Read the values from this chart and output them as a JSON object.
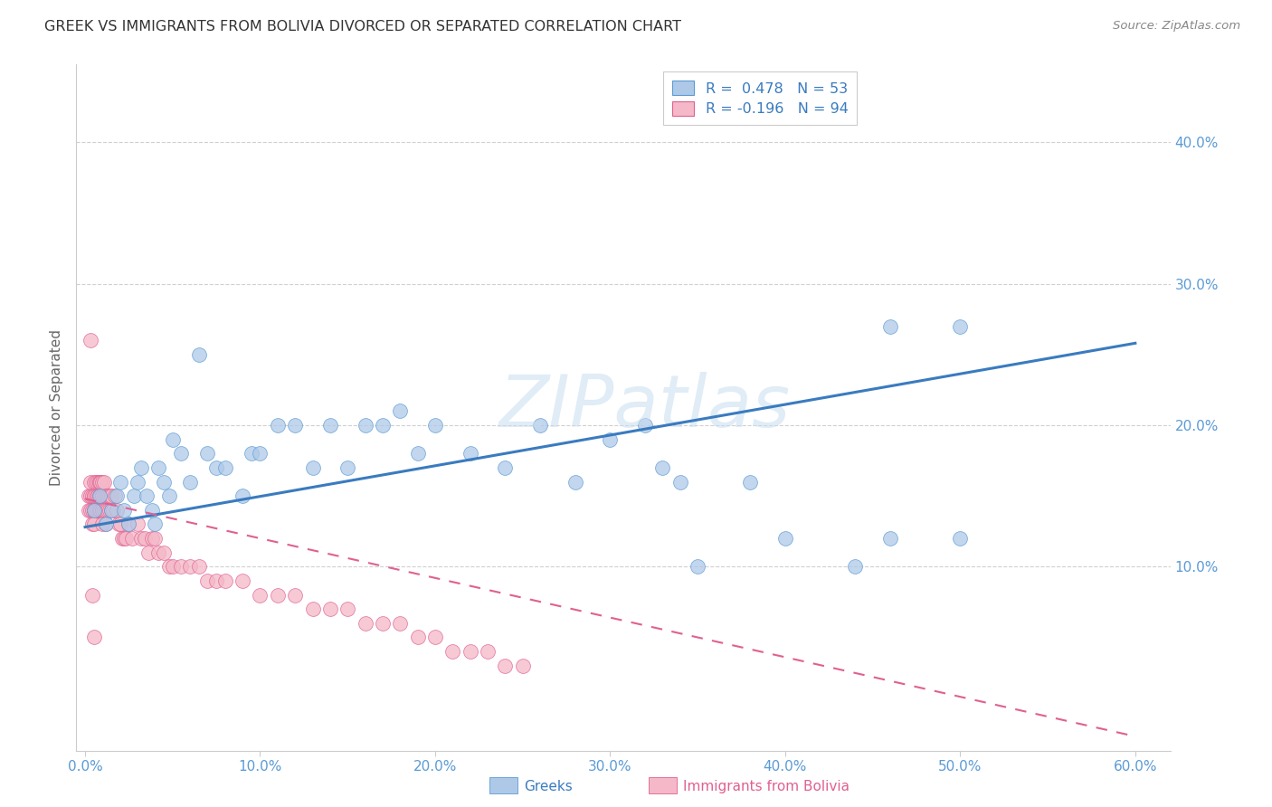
{
  "title": "GREEK VS IMMIGRANTS FROM BOLIVIA DIVORCED OR SEPARATED CORRELATION CHART",
  "source": "Source: ZipAtlas.com",
  "xlabel_ticks": [
    "0.0%",
    "10.0%",
    "20.0%",
    "30.0%",
    "40.0%",
    "50.0%",
    "60.0%"
  ],
  "xlabel_tick_vals": [
    0.0,
    0.1,
    0.2,
    0.3,
    0.4,
    0.5,
    0.6
  ],
  "ylabel": "Divorced or Separated",
  "ylabel_ticks": [
    "10.0%",
    "20.0%",
    "30.0%",
    "40.0%"
  ],
  "ylabel_tick_vals": [
    0.1,
    0.2,
    0.3,
    0.4
  ],
  "xlim": [
    -0.005,
    0.62
  ],
  "ylim": [
    -0.03,
    0.455
  ],
  "watermark_text": "ZIPatlas",
  "legend_blue_label": "R =  0.478   N = 53",
  "legend_pink_label": "R = -0.196   N = 94",
  "blue_color": "#aec9e8",
  "pink_color": "#f4b8c8",
  "blue_edge_color": "#5b9bd5",
  "pink_edge_color": "#e06090",
  "blue_line_color": "#3a7bbf",
  "pink_line_color": "#e06090",
  "blue_scatter_x": [
    0.005,
    0.008,
    0.012,
    0.015,
    0.018,
    0.02,
    0.022,
    0.025,
    0.028,
    0.03,
    0.032,
    0.035,
    0.038,
    0.04,
    0.042,
    0.045,
    0.048,
    0.05,
    0.055,
    0.06,
    0.065,
    0.07,
    0.075,
    0.08,
    0.09,
    0.095,
    0.1,
    0.11,
    0.12,
    0.13,
    0.14,
    0.15,
    0.16,
    0.17,
    0.18,
    0.19,
    0.2,
    0.22,
    0.24,
    0.26,
    0.28,
    0.3,
    0.32,
    0.33,
    0.34,
    0.35,
    0.38,
    0.4,
    0.44,
    0.46,
    0.46,
    0.5,
    0.5
  ],
  "blue_scatter_y": [
    0.14,
    0.15,
    0.13,
    0.14,
    0.15,
    0.16,
    0.14,
    0.13,
    0.15,
    0.16,
    0.17,
    0.15,
    0.14,
    0.13,
    0.17,
    0.16,
    0.15,
    0.19,
    0.18,
    0.16,
    0.25,
    0.18,
    0.17,
    0.17,
    0.15,
    0.18,
    0.18,
    0.2,
    0.2,
    0.17,
    0.2,
    0.17,
    0.2,
    0.2,
    0.21,
    0.18,
    0.2,
    0.18,
    0.17,
    0.2,
    0.16,
    0.19,
    0.2,
    0.17,
    0.16,
    0.1,
    0.16,
    0.12,
    0.1,
    0.27,
    0.12,
    0.12,
    0.27
  ],
  "pink_scatter_x": [
    0.002,
    0.002,
    0.003,
    0.003,
    0.003,
    0.004,
    0.004,
    0.004,
    0.005,
    0.005,
    0.005,
    0.005,
    0.005,
    0.005,
    0.005,
    0.006,
    0.006,
    0.006,
    0.007,
    0.007,
    0.007,
    0.007,
    0.008,
    0.008,
    0.008,
    0.008,
    0.009,
    0.009,
    0.009,
    0.009,
    0.01,
    0.01,
    0.01,
    0.01,
    0.01,
    0.01,
    0.011,
    0.011,
    0.011,
    0.012,
    0.012,
    0.012,
    0.013,
    0.013,
    0.014,
    0.014,
    0.015,
    0.015,
    0.016,
    0.017,
    0.018,
    0.019,
    0.02,
    0.021,
    0.022,
    0.023,
    0.025,
    0.027,
    0.03,
    0.032,
    0.034,
    0.036,
    0.038,
    0.04,
    0.042,
    0.045,
    0.048,
    0.05,
    0.055,
    0.06,
    0.065,
    0.07,
    0.075,
    0.08,
    0.09,
    0.1,
    0.11,
    0.12,
    0.13,
    0.14,
    0.15,
    0.16,
    0.17,
    0.18,
    0.19,
    0.2,
    0.21,
    0.22,
    0.23,
    0.24,
    0.25,
    0.003,
    0.004,
    0.005
  ],
  "pink_scatter_y": [
    0.14,
    0.15,
    0.15,
    0.14,
    0.16,
    0.15,
    0.14,
    0.13,
    0.16,
    0.15,
    0.14,
    0.14,
    0.15,
    0.14,
    0.13,
    0.15,
    0.16,
    0.14,
    0.16,
    0.15,
    0.14,
    0.15,
    0.16,
    0.15,
    0.14,
    0.16,
    0.15,
    0.16,
    0.14,
    0.15,
    0.14,
    0.15,
    0.14,
    0.15,
    0.16,
    0.13,
    0.15,
    0.14,
    0.16,
    0.15,
    0.14,
    0.13,
    0.15,
    0.14,
    0.15,
    0.14,
    0.15,
    0.14,
    0.14,
    0.15,
    0.14,
    0.13,
    0.13,
    0.12,
    0.12,
    0.12,
    0.13,
    0.12,
    0.13,
    0.12,
    0.12,
    0.11,
    0.12,
    0.12,
    0.11,
    0.11,
    0.1,
    0.1,
    0.1,
    0.1,
    0.1,
    0.09,
    0.09,
    0.09,
    0.09,
    0.08,
    0.08,
    0.08,
    0.07,
    0.07,
    0.07,
    0.06,
    0.06,
    0.06,
    0.05,
    0.05,
    0.04,
    0.04,
    0.04,
    0.03,
    0.03,
    0.26,
    0.08,
    0.05
  ],
  "blue_trend_x": [
    0.0,
    0.6
  ],
  "blue_trend_y": [
    0.128,
    0.258
  ],
  "pink_trend_x": [
    0.0,
    0.6
  ],
  "pink_trend_y": [
    0.148,
    -0.02
  ],
  "background_color": "#ffffff",
  "grid_color": "#d0d0d0",
  "tick_color": "#5b9bd5",
  "ylabel_color": "#666666",
  "title_color": "#333333",
  "source_color": "#888888"
}
